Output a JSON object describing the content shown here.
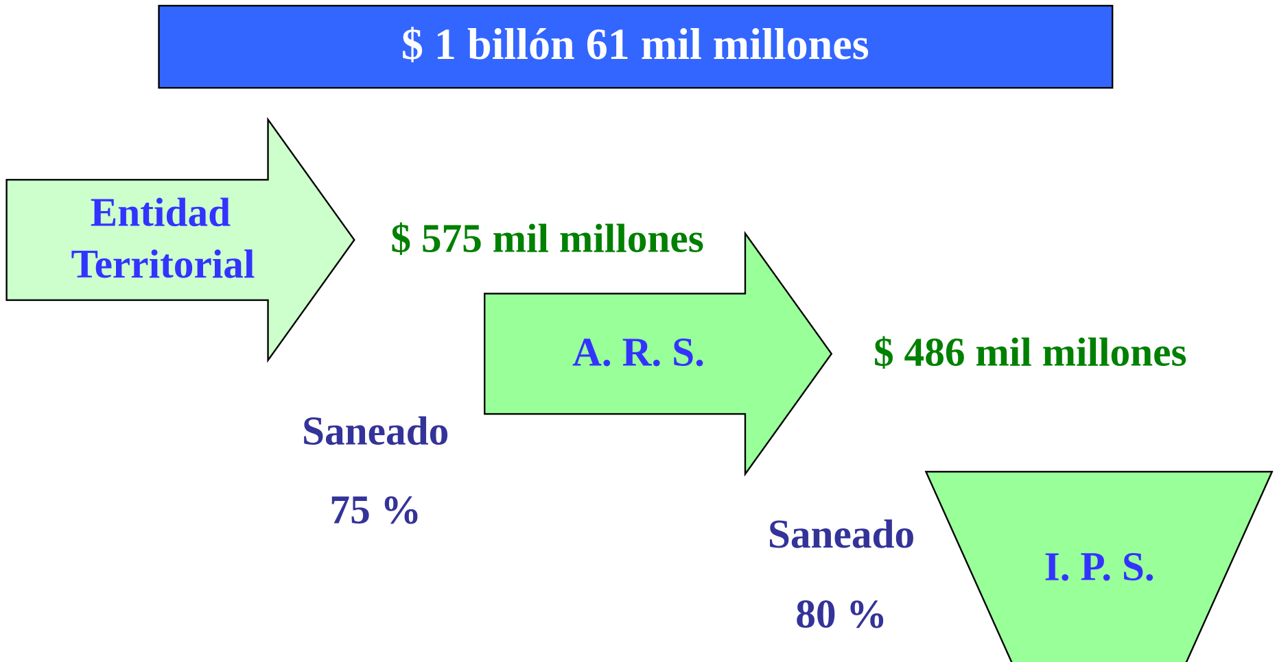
{
  "header": {
    "title": "$ 1 billón 61 mil millones"
  },
  "nodes": [
    {
      "label": [
        "Entidad",
        "Territorial"
      ]
    },
    {
      "label": [
        "A. R. S."
      ]
    },
    {
      "label": [
        "I. P. S."
      ]
    }
  ],
  "flows": [
    {
      "amount": "$ 575 mil millones",
      "status": "Saneado",
      "percent": "75 %"
    },
    {
      "amount": "$ 486 mil millones",
      "status": "Saneado",
      "percent": "80 %"
    }
  ]
}
